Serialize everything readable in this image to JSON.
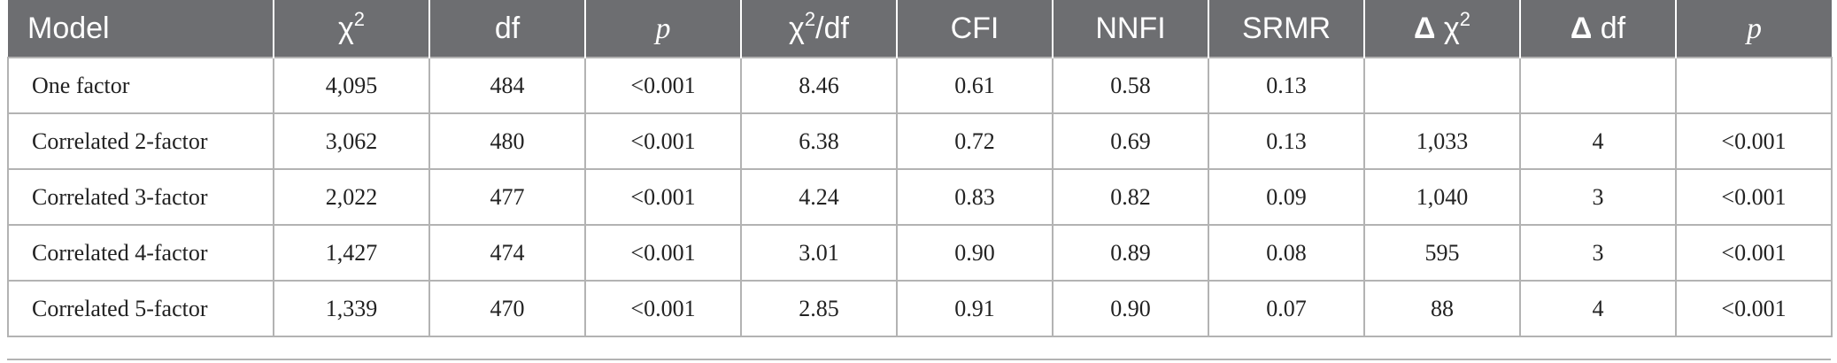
{
  "header": {
    "model": "Model",
    "chi_symbol": "χ",
    "chi_sup": "2",
    "df": "df",
    "p": "p",
    "chi_df_symbol": "χ",
    "chi_df_sup": "2",
    "chi_df_suffix": "/df",
    "cfi": "CFI",
    "nnfi": "NNFI",
    "srmr": "SRMR",
    "delta_chi_delta": "Δ",
    "delta_chi_symbol": " χ",
    "delta_chi_sup": "2",
    "delta_df_delta": "Δ",
    "delta_df_suffix": " df",
    "p2": "p"
  },
  "rows": [
    {
      "model": "One factor",
      "chi2": "4,095",
      "df": "484",
      "p": "<0.001",
      "chi2_df": "8.46",
      "cfi": "0.61",
      "nnfi": "0.58",
      "srmr": "0.13",
      "delta_chi2": "",
      "delta_df": "",
      "p2": ""
    },
    {
      "model": "Correlated 2-factor",
      "chi2": "3,062",
      "df": "480",
      "p": "<0.001",
      "chi2_df": "6.38",
      "cfi": "0.72",
      "nnfi": "0.69",
      "srmr": "0.13",
      "delta_chi2": "1,033",
      "delta_df": "4",
      "p2": "<0.001"
    },
    {
      "model": "Correlated 3-factor",
      "chi2": "2,022",
      "df": "477",
      "p": "<0.001",
      "chi2_df": "4.24",
      "cfi": "0.83",
      "nnfi": "0.82",
      "srmr": "0.09",
      "delta_chi2": "1,040",
      "delta_df": "3",
      "p2": "<0.001"
    },
    {
      "model": "Correlated 4-factor",
      "chi2": "1,427",
      "df": "474",
      "p": "<0.001",
      "chi2_df": "3.01",
      "cfi": "0.90",
      "nnfi": "0.89",
      "srmr": "0.08",
      "delta_chi2": "595",
      "delta_df": "3",
      "p2": "<0.001"
    },
    {
      "model": "Correlated 5-factor",
      "chi2": "1,339",
      "df": "470",
      "p": "<0.001",
      "chi2_df": "2.85",
      "cfi": "0.91",
      "nnfi": "0.90",
      "srmr": "0.07",
      "delta_chi2": "88",
      "delta_df": "4",
      "p2": "<0.001"
    }
  ],
  "colors": {
    "header_bg": "#6d6e71",
    "header_text": "#ffffff",
    "border": "#b3b3b3"
  }
}
